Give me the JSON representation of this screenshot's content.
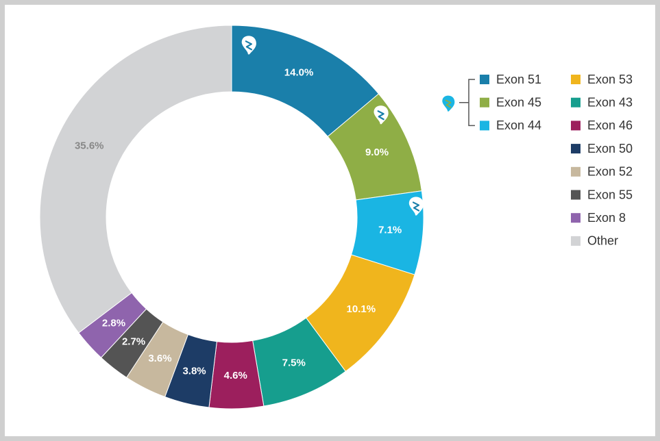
{
  "chart_data": {
    "type": "pie",
    "donut": true,
    "start_angle_deg": 0,
    "direction": "clockwise",
    "slices": [
      {
        "label": "Exon 51",
        "value": 14.0,
        "display": "14.0%",
        "color": "#1a7faa",
        "label_color": "#ffffff",
        "marker": true
      },
      {
        "label": "Exon 45",
        "value": 9.0,
        "display": "9.0%",
        "color": "#8fae46",
        "label_color": "#ffffff",
        "marker": true
      },
      {
        "label": "Exon 44",
        "value": 7.1,
        "display": "7.1%",
        "color": "#1ab5e3",
        "label_color": "#ffffff",
        "marker": true
      },
      {
        "label": "Exon 53",
        "value": 10.1,
        "display": "10.1%",
        "color": "#f0b51d",
        "label_color": "#ffffff",
        "marker": false
      },
      {
        "label": "Exon 43",
        "value": 7.5,
        "display": "7.5%",
        "color": "#169e8e",
        "label_color": "#ffffff",
        "marker": false
      },
      {
        "label": "Exon 46",
        "value": 4.6,
        "display": "4.6%",
        "color": "#9c1f5d",
        "label_color": "#ffffff",
        "marker": false
      },
      {
        "label": "Exon 50",
        "value": 3.8,
        "display": "3.8%",
        "color": "#1d3c66",
        "label_color": "#ffffff",
        "marker": false
      },
      {
        "label": "Exon 52",
        "value": 3.6,
        "display": "3.6%",
        "color": "#c7b89e",
        "label_color": "#ffffff",
        "marker": false
      },
      {
        "label": "Exon 55",
        "value": 2.7,
        "display": "2.7%",
        "color": "#545454",
        "label_color": "#ffffff",
        "marker": false
      },
      {
        "label": "Exon 8",
        "value": 2.8,
        "display": "2.8%",
        "color": "#8f64ad",
        "label_color": "#ffffff",
        "marker": false
      },
      {
        "label": "Other",
        "value": 35.6,
        "display": "35.6%",
        "color": "#d2d3d5",
        "label_color": "#888888",
        "marker": false
      }
    ],
    "legend": {
      "placement": "right",
      "columns": [
        [
          "Exon 51",
          "Exon 45",
          "Exon 44"
        ],
        [
          "Exon 53",
          "Exon 43",
          "Exon 46",
          "Exon 50",
          "Exon 52",
          "Exon 55",
          "Exon 8",
          "Other"
        ]
      ],
      "bracket_marker_items": [
        "Exon 51",
        "Exon 45",
        "Exon 44"
      ]
    },
    "marker_icon": "drop-marker-icon",
    "marker_color": "#ffffff",
    "legend_marker_colors": [
      "#1ab5e3",
      "#8fae46"
    ]
  }
}
